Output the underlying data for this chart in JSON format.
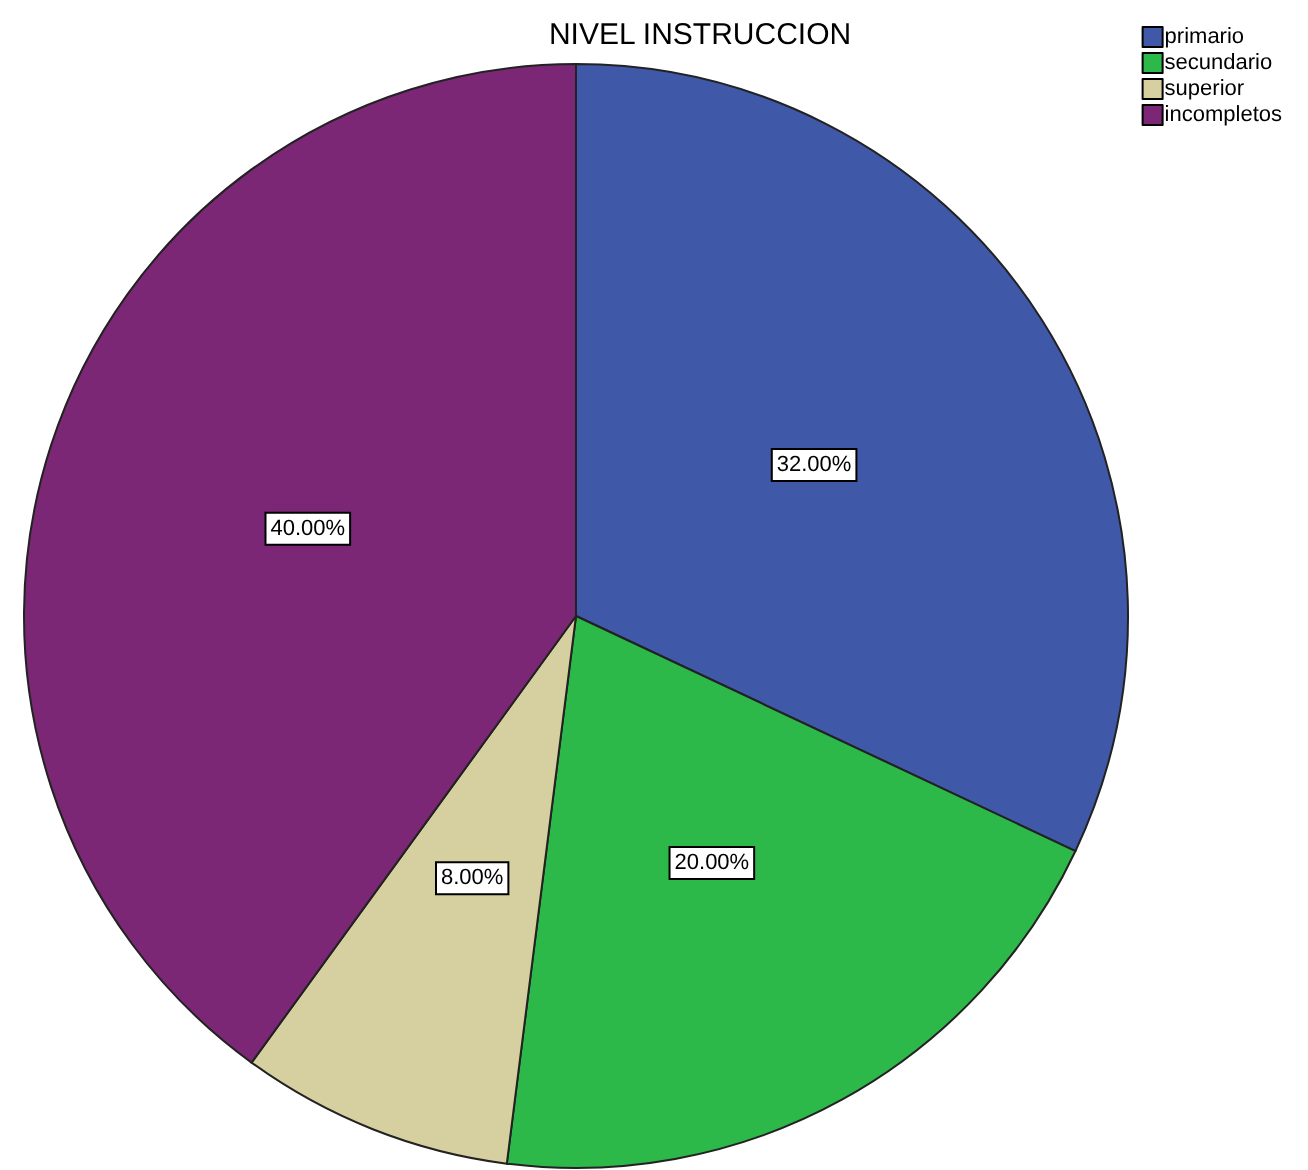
{
  "chart_data": {
    "type": "pie",
    "title": "NIVEL INSTRUCCION",
    "categories": [
      "primario",
      "secundario",
      "superior",
      "incompletos"
    ],
    "values": [
      32,
      20,
      8,
      40
    ],
    "colors": [
      "#3f58a8",
      "#2db84a",
      "#d6cf9f",
      "#7b2775"
    ],
    "value_labels": [
      "32.00%",
      "20.00%",
      "8.00%",
      "40.00%"
    ],
    "legend": "top right"
  }
}
